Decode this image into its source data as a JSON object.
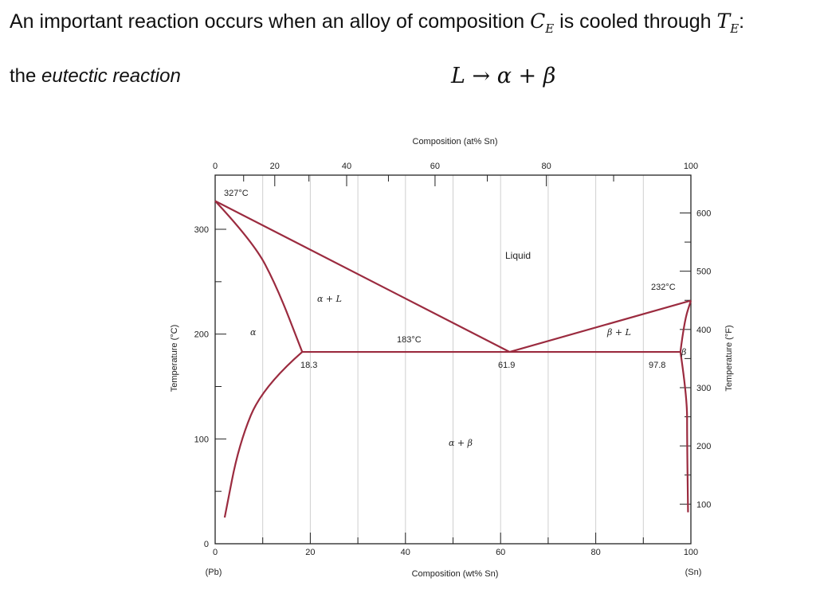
{
  "heading": {
    "prefix": "An important reaction occurs when an alloy of composition ",
    "c_symbol": "C",
    "c_sub": "E",
    "middle": " is cooled through ",
    "t_symbol": "T",
    "t_sub": "E",
    "suffix": ":"
  },
  "reaction": {
    "prefix": "the ",
    "name": "eutectic reaction",
    "equation": "L → α + β"
  },
  "chart": {
    "top_axis_title": "Composition (at% Sn)",
    "top_ticks": [
      "0",
      "20",
      "40",
      "60",
      "80",
      "100"
    ],
    "bottom_axis_title": "Composition (wt% Sn)",
    "bottom_ticks": [
      "0",
      "20",
      "40",
      "60",
      "80",
      "100"
    ],
    "bottom_left_note": "(Pb)",
    "bottom_right_note": "(Sn)",
    "left_axis_title": "Temperature (°C)",
    "left_ticks": [
      "0",
      "100",
      "200",
      "300"
    ],
    "right_axis_title": "Temperature (°F)",
    "right_ticks": [
      "100",
      "200",
      "300",
      "400",
      "500",
      "600"
    ],
    "annotations": {
      "pb_melt": "327°C",
      "sn_melt": "232°C",
      "eutectic_temp": "183°C",
      "alpha_limit": "18.3",
      "eutectic_comp": "61.9",
      "beta_limit": "97.8"
    },
    "regions": {
      "liquid": "Liquid",
      "alpha_l": "α + L",
      "beta_l": "β + L",
      "alpha": "α",
      "beta": "β",
      "alpha_beta": "α + β"
    },
    "line_color": "#9b2b3f"
  },
  "chart_data": {
    "type": "phase_diagram",
    "x_unit": "wt% Sn",
    "y_unit": "°C",
    "xlim": [
      0,
      100
    ],
    "ylim": [
      0,
      350
    ],
    "curves": [
      {
        "id": "liquidus_pb",
        "points": [
          [
            0,
            327
          ],
          [
            61.9,
            183
          ]
        ]
      },
      {
        "id": "liquidus_sn",
        "points": [
          [
            61.9,
            183
          ],
          [
            100,
            232
          ]
        ]
      },
      {
        "id": "solidus_alpha",
        "points": [
          [
            0,
            327
          ],
          [
            8,
            288
          ],
          [
            13,
            245
          ],
          [
            18.3,
            183
          ]
        ]
      },
      {
        "id": "solvus_alpha",
        "points": [
          [
            18.3,
            183
          ],
          [
            10,
            150
          ],
          [
            5,
            95
          ],
          [
            2,
            25
          ]
        ]
      },
      {
        "id": "eutectic_isotherm",
        "points": [
          [
            18.3,
            183
          ],
          [
            97.8,
            183
          ]
        ]
      },
      {
        "id": "solidus_beta",
        "points": [
          [
            97.8,
            183
          ],
          [
            98.6,
            212
          ],
          [
            100,
            232
          ]
        ]
      },
      {
        "id": "solvus_beta",
        "points": [
          [
            97.8,
            183
          ],
          [
            99.2,
            140
          ],
          [
            99.2,
            100
          ],
          [
            99.4,
            30
          ]
        ]
      }
    ]
  }
}
